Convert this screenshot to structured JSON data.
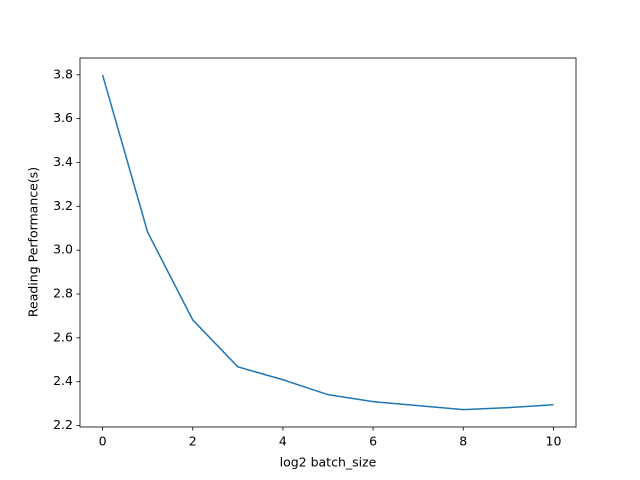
{
  "chart_data": {
    "type": "line",
    "x_label": "log2 batch_size",
    "y_label": "Reading Performance(s)",
    "x": [
      0,
      1,
      2,
      3,
      4,
      5,
      6,
      7,
      8,
      9,
      10
    ],
    "series": [
      {
        "color": "#1f77b4",
        "values": [
          3.8,
          3.082,
          2.682,
          2.468,
          2.409,
          2.341,
          2.309,
          2.291,
          2.273,
          2.282,
          2.295
        ]
      }
    ],
    "xlim": [
      -0.5,
      10.5
    ],
    "xticks": [
      0,
      2,
      4,
      6,
      8,
      10
    ],
    "ylim": [
      2.1935,
      3.8765
    ],
    "yticks": [
      2.2,
      2.4,
      2.6,
      2.8,
      {
        "value": 3,
        "label": "3.0"
      },
      3.2,
      3.4,
      3.6,
      3.8
    ]
  }
}
